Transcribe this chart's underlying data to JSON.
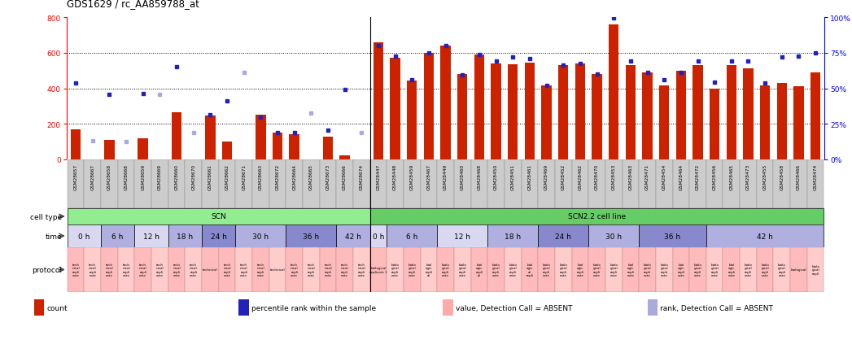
{
  "title": "GDS1629 / rc_AA859788_at",
  "samples": [
    "GSM28657",
    "GSM28667",
    "GSM28658",
    "GSM28668",
    "GSM28659",
    "GSM28669",
    "GSM28660",
    "GSM28670",
    "GSM28661",
    "GSM28662",
    "GSM28671",
    "GSM28663",
    "GSM28672",
    "GSM28664",
    "GSM28665",
    "GSM28673",
    "GSM28666",
    "GSM28674",
    "GSM28447",
    "GSM28448",
    "GSM28459",
    "GSM28467",
    "GSM28449",
    "GSM28460",
    "GSM28468",
    "GSM28450",
    "GSM28451",
    "GSM28461",
    "GSM28469",
    "GSM28452",
    "GSM28462",
    "GSM28470",
    "GSM28453",
    "GSM28463",
    "GSM28471",
    "GSM28454",
    "GSM28464",
    "GSM28472",
    "GSM28456",
    "GSM28465",
    "GSM28473",
    "GSM28455",
    "GSM28458",
    "GSM28466",
    "GSM28474"
  ],
  "bar_values": [
    170,
    0,
    110,
    0,
    120,
    0,
    265,
    0,
    245,
    100,
    0,
    250,
    150,
    140,
    0,
    130,
    25,
    0,
    660,
    570,
    445,
    600,
    640,
    480,
    590,
    540,
    535,
    545,
    415,
    530,
    540,
    480,
    760,
    530,
    490,
    415,
    500,
    530,
    400,
    530,
    510,
    415,
    430,
    410,
    490
  ],
  "bar_absent": [
    false,
    true,
    false,
    true,
    false,
    true,
    false,
    true,
    false,
    false,
    true,
    false,
    false,
    false,
    true,
    false,
    false,
    true,
    false,
    false,
    false,
    false,
    false,
    false,
    false,
    false,
    false,
    false,
    false,
    false,
    false,
    false,
    false,
    false,
    false,
    false,
    false,
    false,
    false,
    false,
    false,
    false,
    false,
    false,
    false
  ],
  "dot_values": [
    430,
    105,
    365,
    100,
    370,
    365,
    520,
    150,
    250,
    330,
    490,
    240,
    150,
    150,
    260,
    165,
    395,
    150,
    640,
    580,
    450,
    600,
    640,
    475,
    590,
    555,
    575,
    565,
    415,
    530,
    540,
    480,
    795,
    555,
    490,
    450,
    490,
    555,
    435,
    555,
    555,
    430,
    575,
    580,
    600
  ],
  "dot_absent": [
    false,
    true,
    false,
    true,
    false,
    true,
    false,
    true,
    false,
    false,
    true,
    false,
    false,
    false,
    true,
    false,
    false,
    true,
    false,
    false,
    false,
    false,
    false,
    false,
    false,
    false,
    false,
    false,
    false,
    false,
    false,
    false,
    false,
    false,
    false,
    false,
    false,
    false,
    false,
    false,
    false,
    false,
    false,
    false,
    false
  ],
  "ylim": [
    0,
    800
  ],
  "yticks": [
    0,
    200,
    400,
    600,
    800
  ],
  "y2ticks": [
    0,
    25,
    50,
    75,
    100
  ],
  "y2labels": [
    "0%",
    "25%",
    "50%",
    "75%",
    "100%"
  ],
  "hlines": [
    200,
    400,
    600
  ],
  "cell_type_groups": [
    {
      "label": "SCN",
      "start": 0,
      "end": 18,
      "color": "#90EE90"
    },
    {
      "label": "SCN2.2 cell line",
      "start": 18,
      "end": 45,
      "color": "#66CC66"
    }
  ],
  "time_groups_merged": [
    {
      "label": "0 h",
      "start": 0,
      "end": 2,
      "color": "#D8D8F0"
    },
    {
      "label": "6 h",
      "start": 2,
      "end": 4,
      "color": "#B0B0E0"
    },
    {
      "label": "12 h",
      "start": 4,
      "end": 6,
      "color": "#D8D8F0"
    },
    {
      "label": "18 h",
      "start": 6,
      "end": 8,
      "color": "#B0B0E0"
    },
    {
      "label": "24 h",
      "start": 8,
      "end": 10,
      "color": "#8888CC"
    },
    {
      "label": "30 h",
      "start": 10,
      "end": 13,
      "color": "#B0B0E0"
    },
    {
      "label": "36 h",
      "start": 13,
      "end": 16,
      "color": "#8888CC"
    },
    {
      "label": "42 h",
      "start": 16,
      "end": 18,
      "color": "#B0B0E0"
    },
    {
      "label": "0 h",
      "start": 18,
      "end": 19,
      "color": "#D8D8F0"
    },
    {
      "label": "6 h",
      "start": 19,
      "end": 22,
      "color": "#B0B0E0"
    },
    {
      "label": "12 h",
      "start": 22,
      "end": 25,
      "color": "#D8D8F0"
    },
    {
      "label": "18 h",
      "start": 25,
      "end": 28,
      "color": "#B0B0E0"
    },
    {
      "label": "24 h",
      "start": 28,
      "end": 31,
      "color": "#8888CC"
    },
    {
      "label": "30 h",
      "start": 31,
      "end": 34,
      "color": "#B0B0E0"
    },
    {
      "label": "36 h",
      "start": 34,
      "end": 38,
      "color": "#8888CC"
    },
    {
      "label": "42 h",
      "start": 38,
      "end": 45,
      "color": "#B0B0E0"
    }
  ],
  "protocol_cells": [
    {
      "label": "tech\nnical\nrepli\ncate",
      "start": 0,
      "end": 1,
      "shade": 0
    },
    {
      "label": "tech\nnical\nrepli\ncate",
      "start": 1,
      "end": 2,
      "shade": 1
    },
    {
      "label": "tech\nnical\nrepli\ncate",
      "start": 2,
      "end": 3,
      "shade": 0
    },
    {
      "label": "tech\nnical\nrepli\ncate",
      "start": 3,
      "end": 4,
      "shade": 1
    },
    {
      "label": "tech\nnical\nrepli\ncate",
      "start": 4,
      "end": 5,
      "shade": 0
    },
    {
      "label": "tech\nnical\nrepli\ncate",
      "start": 5,
      "end": 6,
      "shade": 1
    },
    {
      "label": "tech\nnical\nrepli\ncate",
      "start": 6,
      "end": 7,
      "shade": 0
    },
    {
      "label": "tech\nnical\nrepli\ncate",
      "start": 7,
      "end": 8,
      "shade": 1
    },
    {
      "label": "technical",
      "start": 8,
      "end": 9,
      "shade": 0
    },
    {
      "label": "tech\nnical\nrepli\ncate",
      "start": 9,
      "end": 10,
      "shade": 0
    },
    {
      "label": "tech\nnical\nrepli\ncate",
      "start": 10,
      "end": 11,
      "shade": 1
    },
    {
      "label": "tech\nnical\nrepli\ncate",
      "start": 11,
      "end": 12,
      "shade": 0
    },
    {
      "label": "technical",
      "start": 12,
      "end": 13,
      "shade": 1
    },
    {
      "label": "tech\nnical\nrepli\ncate",
      "start": 13,
      "end": 14,
      "shade": 0
    },
    {
      "label": "tech\nnical\nrepli\ncate",
      "start": 14,
      "end": 15,
      "shade": 1
    },
    {
      "label": "tech\nnical\nrepli\ncate",
      "start": 15,
      "end": 16,
      "shade": 0
    },
    {
      "label": "tech\nnical\nrepli\ncate",
      "start": 16,
      "end": 17,
      "shade": 0
    },
    {
      "label": "tech\nnical\nrepli\ncate",
      "start": 17,
      "end": 18,
      "shade": 1
    },
    {
      "label": "biological\nreplicate 1",
      "start": 18,
      "end": 19,
      "shade": 0
    },
    {
      "label": "biolo\ngical\nrepli\ncate",
      "start": 19,
      "end": 20,
      "shade": 1
    },
    {
      "label": "biolo\ngical\nrepli\ncate",
      "start": 20,
      "end": 21,
      "shade": 0
    },
    {
      "label": "biol\nogic\nrepli\nal",
      "start": 21,
      "end": 22,
      "shade": 1
    },
    {
      "label": "biolo\ngical\nrepli\ncate",
      "start": 22,
      "end": 23,
      "shade": 0
    },
    {
      "label": "biolo\ngical\nrepli\ncate",
      "start": 23,
      "end": 24,
      "shade": 1
    },
    {
      "label": "biol\nogic\nrepli\nal",
      "start": 24,
      "end": 25,
      "shade": 0
    },
    {
      "label": "biolo\ngical\nrepli\ncate",
      "start": 25,
      "end": 26,
      "shade": 0
    },
    {
      "label": "biolo\ngical\nrepli\ncate",
      "start": 26,
      "end": 27,
      "shade": 1
    },
    {
      "label": "biol\nogic\nal\nrepli",
      "start": 27,
      "end": 28,
      "shade": 0
    },
    {
      "label": "biolo\ngical\nrepli\ncate",
      "start": 28,
      "end": 29,
      "shade": 0
    },
    {
      "label": "biolo\ngical\nrepli\ncate",
      "start": 29,
      "end": 30,
      "shade": 1
    },
    {
      "label": "biol\nogic\nrepli\ncate",
      "start": 30,
      "end": 31,
      "shade": 0
    },
    {
      "label": "biolo\ngical\nrepli\ncate",
      "start": 31,
      "end": 32,
      "shade": 0
    },
    {
      "label": "biolo\ngical\nrepli\ncate",
      "start": 32,
      "end": 33,
      "shade": 1
    },
    {
      "label": "biol\nogic\nrepli\ncate",
      "start": 33,
      "end": 34,
      "shade": 0
    },
    {
      "label": "biolo\ngical\nrepli\ncate",
      "start": 34,
      "end": 35,
      "shade": 0
    },
    {
      "label": "biolo\ngical\nrepli\ncate",
      "start": 35,
      "end": 36,
      "shade": 1
    },
    {
      "label": "biol\nogic\nrepli\ncate",
      "start": 36,
      "end": 37,
      "shade": 0
    },
    {
      "label": "biolo\ngical\nrepli\ncate",
      "start": 37,
      "end": 38,
      "shade": 0
    },
    {
      "label": "biolo\ngical\nrepli\ncate",
      "start": 38,
      "end": 39,
      "shade": 1
    },
    {
      "label": "biol\nogic\nrepli\ncate",
      "start": 39,
      "end": 40,
      "shade": 0
    },
    {
      "label": "biolo\ngical\nrepli\ncate",
      "start": 40,
      "end": 41,
      "shade": 1
    },
    {
      "label": "biolo\ngical\nrepli\ncate",
      "start": 41,
      "end": 42,
      "shade": 0
    },
    {
      "label": "biolo\ngical\nrepli\ncate",
      "start": 42,
      "end": 43,
      "shade": 1
    },
    {
      "label": "biological",
      "start": 43,
      "end": 44,
      "shade": 0
    },
    {
      "label": "biolo\ngical\nrepli",
      "start": 44,
      "end": 45,
      "shade": 1
    }
  ],
  "bar_color": "#CC2200",
  "bar_absent_color": "#FFAAAA",
  "dot_color": "#2222BB",
  "dot_absent_color": "#AAAADD",
  "scn_boundary": 18,
  "sample_bg_color": "#DDDDDD",
  "legend_items": [
    {
      "color": "#CC2200",
      "label": "count"
    },
    {
      "color": "#2222BB",
      "label": "percentile rank within the sample"
    },
    {
      "color": "#FFAAAA",
      "label": "value, Detection Call = ABSENT"
    },
    {
      "color": "#AAAADD",
      "label": "rank, Detection Call = ABSENT"
    }
  ]
}
